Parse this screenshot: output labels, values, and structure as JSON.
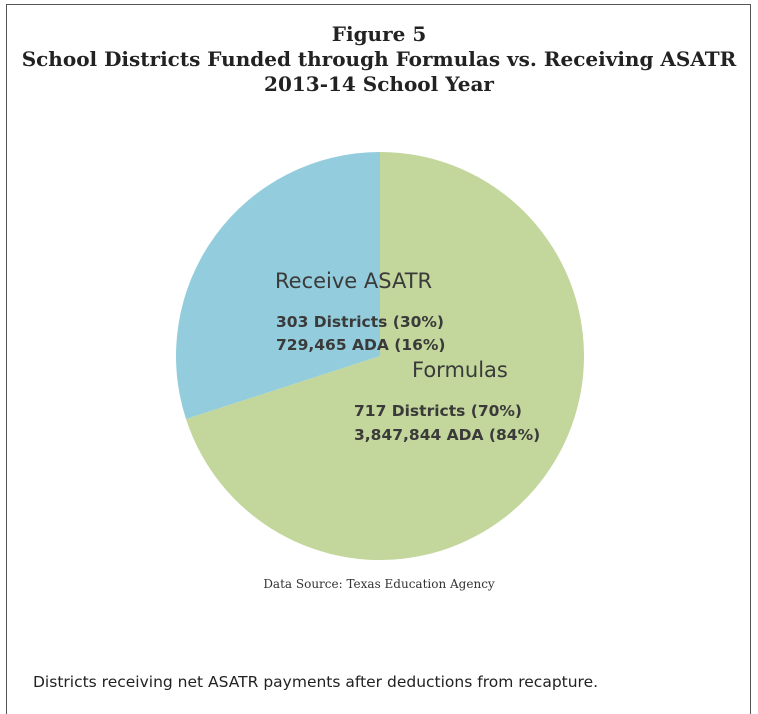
{
  "chart_data": {
    "type": "pie",
    "title_lines": [
      "Figure 5",
      "School Districts Funded through Formulas vs. Receiving ASATR",
      "2013-14 School Year"
    ],
    "slices": [
      {
        "label": "Formulas",
        "districts_text": "717 Districts  (70%)",
        "ada_text": "3,847,844 ADA (84%)",
        "value": 70,
        "color": "#c3d69b"
      },
      {
        "label": "Receive ASATR",
        "districts_text": "303 Districts  (30%)",
        "ada_text": "729,465 ADA (16%)",
        "value": 30,
        "color": "#93cddd"
      }
    ],
    "source": "Data Source:  Texas Education Agency",
    "note": "Districts receiving net ASATR payments after deductions from recapture."
  }
}
